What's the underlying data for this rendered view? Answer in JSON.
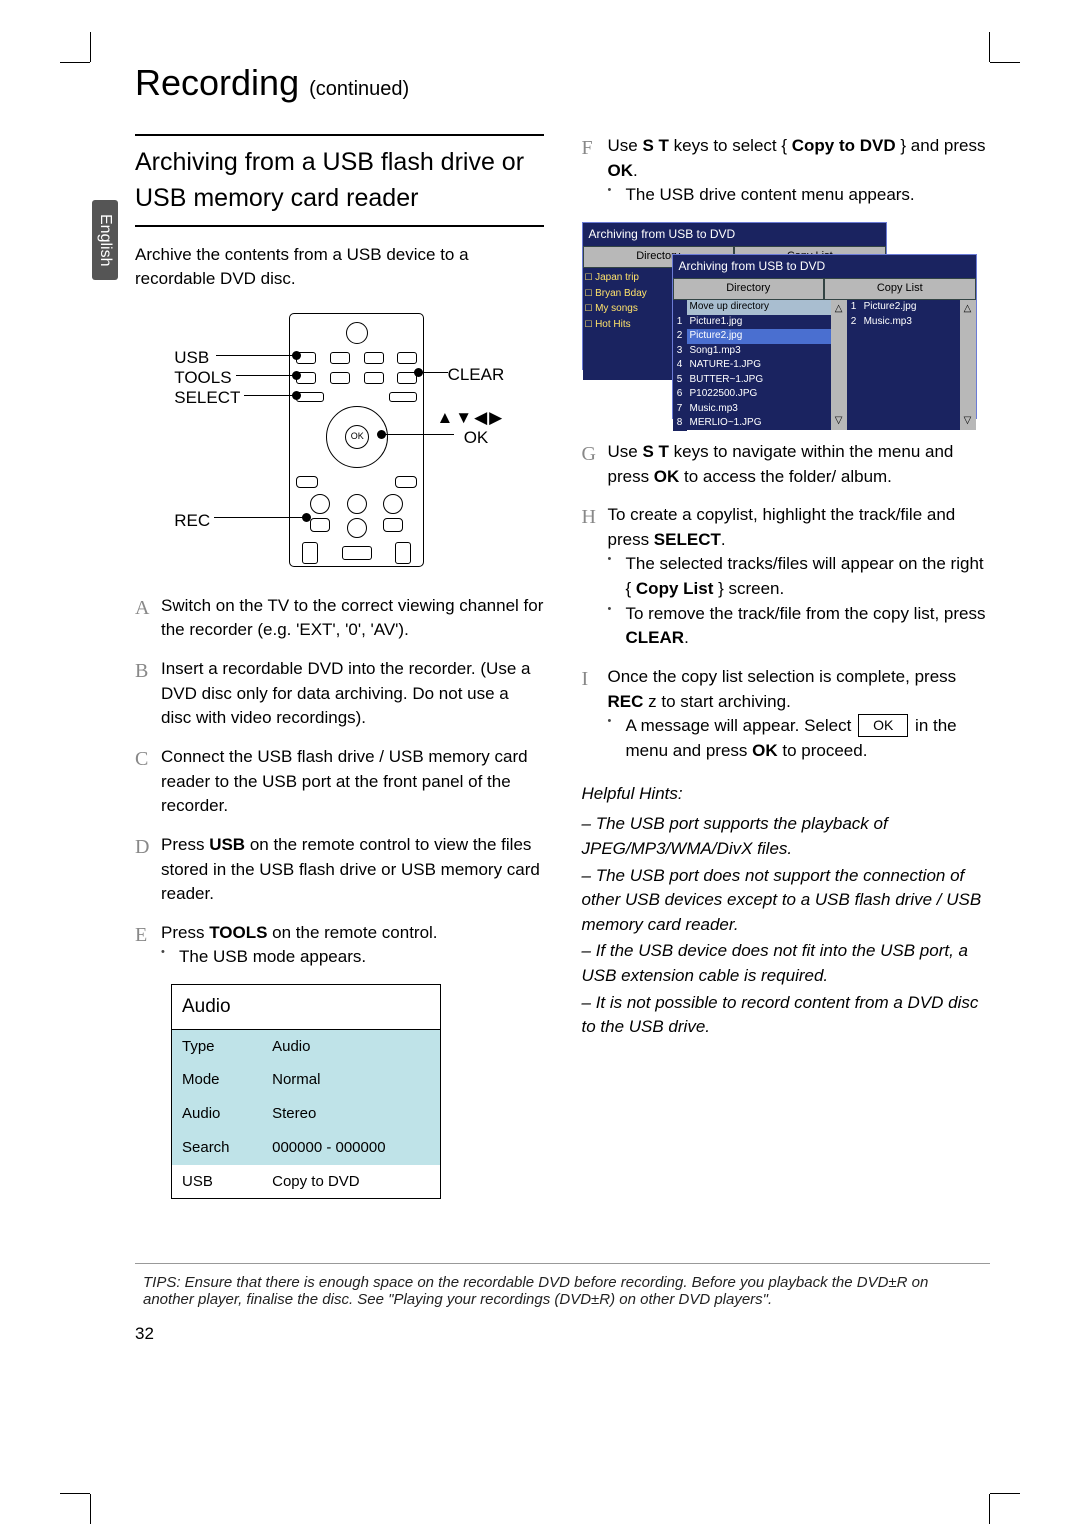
{
  "language_tab": "English",
  "page_title": "Recording",
  "page_title_suffix": "(continued)",
  "section_heading": "Archiving from a USB ﬂash drive or USB memory card reader",
  "intro": "Archive the contents from a USB device to a recordable DVD disc.",
  "remote": {
    "usb": "USB",
    "tools": "TOOLS",
    "select": "SELECT",
    "rec": "REC",
    "clear": "CLEAR",
    "arrows": "▲▼◀▶",
    "ok": "OK"
  },
  "left_steps": [
    {
      "l": "A",
      "t": "Switch on the TV to the correct viewing channel for the recorder (e.g. 'EXT', '0', 'AV')."
    },
    {
      "l": "B",
      "t": "Insert a recordable DVD into the recorder. (Use a DVD disc only for data archiving. Do not use a disc with video recordings)."
    },
    {
      "l": "C",
      "t": "Connect the USB flash drive / USB memory card reader to the USB port at the front panel of the recorder."
    },
    {
      "l": "D",
      "t_pre": "Press ",
      "t_b": "USB",
      "t_post": " on the remote control to view the files stored in the USB flash drive or USB memory card reader."
    },
    {
      "l": "E",
      "t_pre": "Press ",
      "t_b": "TOOLS",
      "t_post": " on the remote control.",
      "sub": "The USB mode appears."
    }
  ],
  "audio_table": {
    "title": "Audio",
    "rows": [
      {
        "k": "Type",
        "v": "Audio",
        "hl": true
      },
      {
        "k": "Mode",
        "v": "Normal",
        "hl": true
      },
      {
        "k": "Audio",
        "v": "Stereo",
        "hl": true
      },
      {
        "k": "Search",
        "v": "000000 - 000000",
        "hl": true
      },
      {
        "k": "USB",
        "v": "Copy to DVD",
        "hl": false
      }
    ]
  },
  "right_steps": {
    "F": {
      "main_pre": "Use ",
      "keys": "S T",
      "main_mid": " keys to select { ",
      "opt": "Copy to DVD",
      "main_post": " } and press ",
      "ok": "OK",
      "end": ".",
      "sub": "The USB drive content menu appears."
    },
    "G": {
      "pre": "Use ",
      "keys": "S T",
      "mid": " keys to navigate within the menu and press ",
      "ok": "OK",
      "post": " to access the folder/ album."
    },
    "H": {
      "main": "To create a copylist, highlight the track/file and press ",
      "sel": "SELECT",
      "end": ".",
      "sub1_pre": "The selected tracks/files will appear on the right { ",
      "copylist": "Copy List",
      "sub1_post": " } screen.",
      "sub2_pre": "To remove the track/file from the copy list, press ",
      "clear": "CLEAR",
      "sub2_post": "."
    },
    "I": {
      "pre": "Once the copy list selection is complete, press ",
      "rec": "REC",
      "dot": "z",
      "post": " to start archiving.",
      "sub_pre": "A message will appear. Select ",
      "btn": "OK",
      "sub_post": " in the menu and press ",
      "ok": "OK",
      "sub_end": " to proceed."
    }
  },
  "shot": {
    "title": "Archiving from USB to DVD",
    "tabs": [
      "Directory",
      "Copy List"
    ],
    "dirs": [
      "Japan trip",
      "Bryan Bday",
      "My songs",
      "Hot Hits"
    ],
    "files": [
      "Move up directory",
      "Picture1.jpg",
      "Picture2.jpg",
      "Song1.mp3",
      "NATURE-1.JPG",
      "BUTTER~1.JPG",
      "P1022500.JPG",
      "Music.mp3",
      "MERLIO~1.JPG"
    ],
    "copylist": [
      "Picture2.jpg",
      "Music.mp3"
    ]
  },
  "hints_heading": "Helpful Hints:",
  "hints": [
    "The USB port supports the playback of JPEG/MP3/WMA/DivX ﬁles.",
    "The USB port does not support the connection of other USB devices except to a USB ﬂash drive / USB memory card reader.",
    "If the USB device does not ﬁt into the USB port, a USB extension cable is required.",
    "It is not possible to record content from a DVD disc to the USB drive."
  ],
  "tips": "TIPS: Ensure that there is enough space on the recordable DVD before recording. Before you playback the DVD±R on another player, finalise the disc. See \"Playing your recordings (DVD±R) on other DVD players\".",
  "page_number": "32"
}
